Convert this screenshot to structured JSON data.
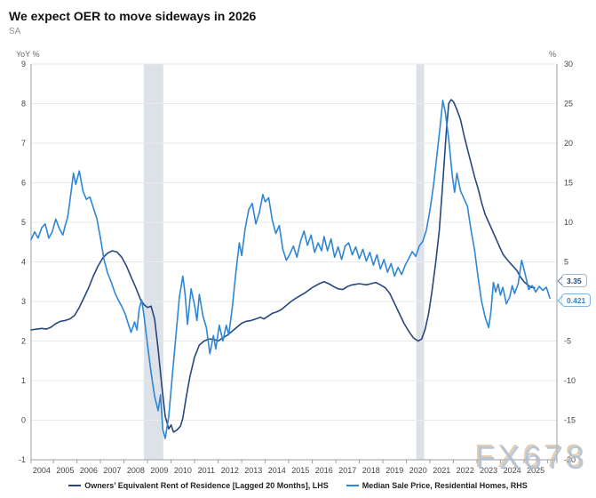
{
  "header": {
    "title": "We expect OER to move sideways in 2026",
    "subtitle": "SA"
  },
  "watermark": {
    "text": "FX678"
  },
  "chart_data": {
    "type": "line",
    "title": "We expect OER to move sideways in 2026",
    "subtitle": "SA",
    "grid": true,
    "legend_position": "bottom",
    "colors": {
      "band": "#dde1e8",
      "grid": "#e9e9e9",
      "axis": "#9aa0a6",
      "tick_text": "#444444",
      "oer_line": "#27477e",
      "msp_line": "#2e86d6"
    },
    "x_axis": {
      "domain": [
        2003.55,
        2025.9
      ],
      "year_labels": [
        "2004",
        "2005",
        "2006",
        "2007",
        "2008",
        "2009",
        "2010",
        "2011",
        "2012",
        "2013",
        "2014",
        "2015",
        "2016",
        "2017",
        "2018",
        "2019",
        "2020",
        "2021",
        "2022",
        "2023",
        "2024",
        "2025"
      ]
    },
    "left_axis": {
      "title": "YoY %",
      "range": [
        -1,
        9
      ],
      "ticks": [
        9,
        8,
        7,
        6,
        5,
        4,
        3,
        2,
        1,
        0,
        -1
      ]
    },
    "right_axis": {
      "title": "%",
      "range": [
        -20,
        30
      ],
      "ticks": [
        30,
        25,
        20,
        15,
        10,
        5,
        -5,
        -10,
        -15,
        -20
      ]
    },
    "recession_bands": [
      {
        "from": 2008.34,
        "to": 2009.17
      },
      {
        "from": 2019.92,
        "to": 2020.26
      }
    ],
    "series": [
      {
        "name": "Owners’ Equivalent Rent of Residence [Lagged 20 Months], LHS",
        "axis": "left",
        "color": "#27477e",
        "latest_value": 3.35,
        "points": [
          [
            2003.55,
            2.28
          ],
          [
            2003.8,
            2.3
          ],
          [
            2004.0,
            2.32
          ],
          [
            2004.2,
            2.3
          ],
          [
            2004.4,
            2.35
          ],
          [
            2004.6,
            2.44
          ],
          [
            2004.8,
            2.5
          ],
          [
            2005.0,
            2.52
          ],
          [
            2005.2,
            2.56
          ],
          [
            2005.4,
            2.65
          ],
          [
            2005.6,
            2.85
          ],
          [
            2005.8,
            3.1
          ],
          [
            2006.0,
            3.35
          ],
          [
            2006.2,
            3.65
          ],
          [
            2006.4,
            3.9
          ],
          [
            2006.6,
            4.1
          ],
          [
            2006.8,
            4.22
          ],
          [
            2007.0,
            4.28
          ],
          [
            2007.2,
            4.25
          ],
          [
            2007.4,
            4.12
          ],
          [
            2007.6,
            3.9
          ],
          [
            2007.8,
            3.62
          ],
          [
            2008.0,
            3.35
          ],
          [
            2008.2,
            3.05
          ],
          [
            2008.35,
            2.92
          ],
          [
            2008.5,
            2.85
          ],
          [
            2008.65,
            2.88
          ],
          [
            2008.8,
            2.55
          ],
          [
            2008.95,
            1.8
          ],
          [
            2009.1,
            0.9
          ],
          [
            2009.25,
            0.1
          ],
          [
            2009.4,
            -0.22
          ],
          [
            2009.5,
            -0.12
          ],
          [
            2009.6,
            -0.3
          ],
          [
            2009.75,
            -0.25
          ],
          [
            2009.9,
            -0.15
          ],
          [
            2010.0,
            0.05
          ],
          [
            2010.15,
            0.6
          ],
          [
            2010.3,
            1.1
          ],
          [
            2010.5,
            1.6
          ],
          [
            2010.7,
            1.9
          ],
          [
            2010.9,
            2.0
          ],
          [
            2011.1,
            2.05
          ],
          [
            2011.3,
            2.05
          ],
          [
            2011.5,
            2.0
          ],
          [
            2011.7,
            2.08
          ],
          [
            2011.9,
            2.15
          ],
          [
            2012.1,
            2.25
          ],
          [
            2012.3,
            2.35
          ],
          [
            2012.5,
            2.45
          ],
          [
            2012.7,
            2.5
          ],
          [
            2012.9,
            2.52
          ],
          [
            2013.1,
            2.56
          ],
          [
            2013.3,
            2.6
          ],
          [
            2013.45,
            2.56
          ],
          [
            2013.6,
            2.62
          ],
          [
            2013.8,
            2.7
          ],
          [
            2014.0,
            2.74
          ],
          [
            2014.2,
            2.8
          ],
          [
            2014.4,
            2.9
          ],
          [
            2014.6,
            3.0
          ],
          [
            2014.8,
            3.08
          ],
          [
            2015.0,
            3.15
          ],
          [
            2015.2,
            3.22
          ],
          [
            2015.5,
            3.35
          ],
          [
            2015.8,
            3.45
          ],
          [
            2016.0,
            3.5
          ],
          [
            2016.2,
            3.45
          ],
          [
            2016.4,
            3.38
          ],
          [
            2016.6,
            3.32
          ],
          [
            2016.8,
            3.3
          ],
          [
            2017.0,
            3.38
          ],
          [
            2017.2,
            3.42
          ],
          [
            2017.5,
            3.45
          ],
          [
            2017.8,
            3.42
          ],
          [
            2018.0,
            3.45
          ],
          [
            2018.2,
            3.48
          ],
          [
            2018.4,
            3.42
          ],
          [
            2018.6,
            3.35
          ],
          [
            2018.8,
            3.2
          ],
          [
            2019.0,
            2.95
          ],
          [
            2019.2,
            2.7
          ],
          [
            2019.4,
            2.45
          ],
          [
            2019.6,
            2.25
          ],
          [
            2019.8,
            2.08
          ],
          [
            2020.0,
            2.0
          ],
          [
            2020.15,
            2.05
          ],
          [
            2020.3,
            2.3
          ],
          [
            2020.45,
            2.7
          ],
          [
            2020.6,
            3.3
          ],
          [
            2020.75,
            4.0
          ],
          [
            2020.9,
            4.8
          ],
          [
            2021.05,
            6.0
          ],
          [
            2021.2,
            7.3
          ],
          [
            2021.3,
            8.0
          ],
          [
            2021.4,
            8.1
          ],
          [
            2021.5,
            8.05
          ],
          [
            2021.65,
            7.85
          ],
          [
            2021.8,
            7.6
          ],
          [
            2021.95,
            7.2
          ],
          [
            2022.1,
            6.85
          ],
          [
            2022.25,
            6.5
          ],
          [
            2022.4,
            6.15
          ],
          [
            2022.55,
            5.85
          ],
          [
            2022.7,
            5.5
          ],
          [
            2022.85,
            5.2
          ],
          [
            2023.0,
            5.0
          ],
          [
            2023.15,
            4.8
          ],
          [
            2023.3,
            4.6
          ],
          [
            2023.45,
            4.4
          ],
          [
            2023.6,
            4.2
          ],
          [
            2023.75,
            4.08
          ],
          [
            2023.9,
            3.98
          ],
          [
            2024.05,
            3.88
          ],
          [
            2024.2,
            3.78
          ],
          [
            2024.35,
            3.62
          ],
          [
            2024.5,
            3.5
          ],
          [
            2024.65,
            3.42
          ],
          [
            2024.8,
            3.36
          ],
          [
            2024.95,
            3.35
          ]
        ]
      },
      {
        "name": "Median Sale Price, Residential Homes, RHS",
        "axis": "right",
        "color": "#2e86d6",
        "latest_value": 0.421,
        "points": [
          [
            2003.55,
            7.8
          ],
          [
            2003.7,
            8.8
          ],
          [
            2003.85,
            8.0
          ],
          [
            2004.0,
            9.3
          ],
          [
            2004.15,
            9.8
          ],
          [
            2004.3,
            8.0
          ],
          [
            2004.45,
            8.8
          ],
          [
            2004.6,
            10.4
          ],
          [
            2004.75,
            9.2
          ],
          [
            2004.9,
            8.4
          ],
          [
            2005.0,
            9.6
          ],
          [
            2005.1,
            10.6
          ],
          [
            2005.2,
            12.7
          ],
          [
            2005.35,
            16.2
          ],
          [
            2005.45,
            14.8
          ],
          [
            2005.6,
            16.5
          ],
          [
            2005.75,
            14.0
          ],
          [
            2005.9,
            12.9
          ],
          [
            2006.05,
            13.2
          ],
          [
            2006.2,
            11.8
          ],
          [
            2006.35,
            10.4
          ],
          [
            2006.5,
            8.0
          ],
          [
            2006.65,
            5.3
          ],
          [
            2006.8,
            3.6
          ],
          [
            2006.95,
            2.5
          ],
          [
            2007.1,
            1.2
          ],
          [
            2007.25,
            0.2
          ],
          [
            2007.4,
            -0.6
          ],
          [
            2007.55,
            -1.6
          ],
          [
            2007.7,
            -3.0
          ],
          [
            2007.8,
            -3.9
          ],
          [
            2007.95,
            -2.6
          ],
          [
            2008.05,
            -3.6
          ],
          [
            2008.15,
            -0.9
          ],
          [
            2008.25,
            0.2
          ],
          [
            2008.35,
            -1.8
          ],
          [
            2008.5,
            -5.5
          ],
          [
            2008.65,
            -9.0
          ],
          [
            2008.8,
            -12.0
          ],
          [
            2008.95,
            -13.8
          ],
          [
            2009.05,
            -11.8
          ],
          [
            2009.15,
            -16.2
          ],
          [
            2009.25,
            -17.3
          ],
          [
            2009.4,
            -14.5
          ],
          [
            2009.55,
            -9.5
          ],
          [
            2009.7,
            -4.5
          ],
          [
            2009.85,
            0.5
          ],
          [
            2010.0,
            3.2
          ],
          [
            2010.1,
            0.8
          ],
          [
            2010.2,
            -2.9
          ],
          [
            2010.35,
            1.6
          ],
          [
            2010.5,
            -0.5
          ],
          [
            2010.6,
            -2.4
          ],
          [
            2010.7,
            0.9
          ],
          [
            2010.85,
            -1.8
          ],
          [
            2011.0,
            -3.3
          ],
          [
            2011.15,
            -6.6
          ],
          [
            2011.3,
            -4.3
          ],
          [
            2011.4,
            -6.0
          ],
          [
            2011.55,
            -3.0
          ],
          [
            2011.7,
            -5.0
          ],
          [
            2011.85,
            -3.0
          ],
          [
            2011.95,
            -4.2
          ],
          [
            2012.1,
            -0.8
          ],
          [
            2012.25,
            3.5
          ],
          [
            2012.4,
            7.4
          ],
          [
            2012.5,
            5.8
          ],
          [
            2012.65,
            9.2
          ],
          [
            2012.8,
            11.6
          ],
          [
            2012.95,
            12.4
          ],
          [
            2013.1,
            9.8
          ],
          [
            2013.25,
            11.2
          ],
          [
            2013.4,
            13.5
          ],
          [
            2013.5,
            12.6
          ],
          [
            2013.65,
            13.1
          ],
          [
            2013.8,
            10.3
          ],
          [
            2013.95,
            8.6
          ],
          [
            2014.1,
            9.6
          ],
          [
            2014.25,
            6.6
          ],
          [
            2014.4,
            5.2
          ],
          [
            2014.55,
            6.0
          ],
          [
            2014.7,
            7.0
          ],
          [
            2014.85,
            5.6
          ],
          [
            2015.0,
            7.6
          ],
          [
            2015.15,
            8.9
          ],
          [
            2015.3,
            7.1
          ],
          [
            2015.45,
            8.4
          ],
          [
            2015.6,
            6.2
          ],
          [
            2015.75,
            7.4
          ],
          [
            2015.9,
            6.4
          ],
          [
            2016.0,
            8.2
          ],
          [
            2016.15,
            6.4
          ],
          [
            2016.3,
            7.9
          ],
          [
            2016.45,
            5.6
          ],
          [
            2016.6,
            6.9
          ],
          [
            2016.75,
            5.3
          ],
          [
            2016.9,
            7.0
          ],
          [
            2017.05,
            7.4
          ],
          [
            2017.2,
            5.9
          ],
          [
            2017.35,
            6.9
          ],
          [
            2017.5,
            5.4
          ],
          [
            2017.65,
            6.6
          ],
          [
            2017.8,
            5.1
          ],
          [
            2017.95,
            6.2
          ],
          [
            2018.1,
            4.6
          ],
          [
            2018.25,
            5.9
          ],
          [
            2018.4,
            4.1
          ],
          [
            2018.55,
            5.3
          ],
          [
            2018.7,
            3.7
          ],
          [
            2018.85,
            4.8
          ],
          [
            2019.0,
            3.2
          ],
          [
            2019.15,
            4.3
          ],
          [
            2019.3,
            3.4
          ],
          [
            2019.45,
            4.6
          ],
          [
            2019.6,
            5.4
          ],
          [
            2019.75,
            6.3
          ],
          [
            2019.9,
            5.7
          ],
          [
            2020.05,
            7.0
          ],
          [
            2020.2,
            7.6
          ],
          [
            2020.35,
            9.0
          ],
          [
            2020.5,
            11.5
          ],
          [
            2020.65,
            14.5
          ],
          [
            2020.8,
            18.5
          ],
          [
            2020.95,
            22.5
          ],
          [
            2021.05,
            25.4
          ],
          [
            2021.15,
            24.0
          ],
          [
            2021.3,
            20.5
          ],
          [
            2021.45,
            16.0
          ],
          [
            2021.55,
            13.8
          ],
          [
            2021.65,
            16.2
          ],
          [
            2021.8,
            14.0
          ],
          [
            2021.95,
            13.0
          ],
          [
            2022.1,
            12.0
          ],
          [
            2022.25,
            9.0
          ],
          [
            2022.4,
            6.5
          ],
          [
            2022.55,
            3.0
          ],
          [
            2022.7,
            0.0
          ],
          [
            2022.85,
            -2.0
          ],
          [
            2023.0,
            -3.3
          ],
          [
            2023.1,
            -1.2
          ],
          [
            2023.2,
            2.4
          ],
          [
            2023.3,
            1.2
          ],
          [
            2023.4,
            2.2
          ],
          [
            2023.5,
            0.8
          ],
          [
            2023.6,
            1.8
          ],
          [
            2023.75,
            -0.3
          ],
          [
            2023.9,
            0.6
          ],
          [
            2024.0,
            2.0
          ],
          [
            2024.1,
            1.0
          ],
          [
            2024.25,
            2.2
          ],
          [
            2024.4,
            5.2
          ],
          [
            2024.55,
            3.5
          ],
          [
            2024.7,
            1.5
          ],
          [
            2024.85,
            2.0
          ],
          [
            2025.0,
            1.2
          ],
          [
            2025.15,
            1.9
          ],
          [
            2025.3,
            1.4
          ],
          [
            2025.45,
            1.8
          ],
          [
            2025.6,
            0.421
          ]
        ]
      }
    ],
    "callouts": [
      {
        "label": "3.35",
        "text_color": "#27477e",
        "border_color": "#a7b6cc"
      },
      {
        "label": "0.421",
        "text_color": "#2e86d6",
        "border_color": "#7db1e8"
      }
    ]
  }
}
